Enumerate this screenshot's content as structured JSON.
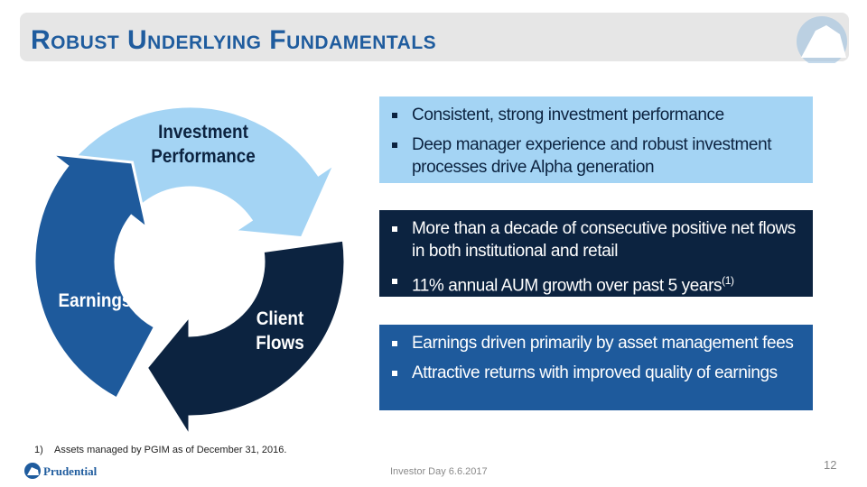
{
  "header": {
    "title": "Robust Underlying Fundamentals"
  },
  "cycle": {
    "segments": [
      {
        "label": "Investment Performance"
      },
      {
        "label": "Client Flows"
      },
      {
        "label": "Earnings"
      }
    ]
  },
  "boxes": [
    {
      "bullets": [
        {
          "text": "Consistent, strong investment performance"
        },
        {
          "text": "Deep manager experience and robust investment processes drive Alpha generation"
        }
      ]
    },
    {
      "bullets": [
        {
          "text": "More than a decade of consecutive positive net flows in both institutional and retail"
        },
        {
          "text": "11% annual AUM growth over past 5 years",
          "superscript": "(1)"
        }
      ]
    },
    {
      "bullets": [
        {
          "text": "Earnings driven primarily by asset management fees"
        },
        {
          "text": "Attractive returns with improved quality of earnings"
        }
      ]
    }
  ],
  "footnote": {
    "marker": "1)",
    "text": "Assets managed by PGIM as of December 31, 2016."
  },
  "footer": {
    "event": "Investor Day 6.6.2017",
    "page": "12",
    "logo": "Prudential"
  }
}
